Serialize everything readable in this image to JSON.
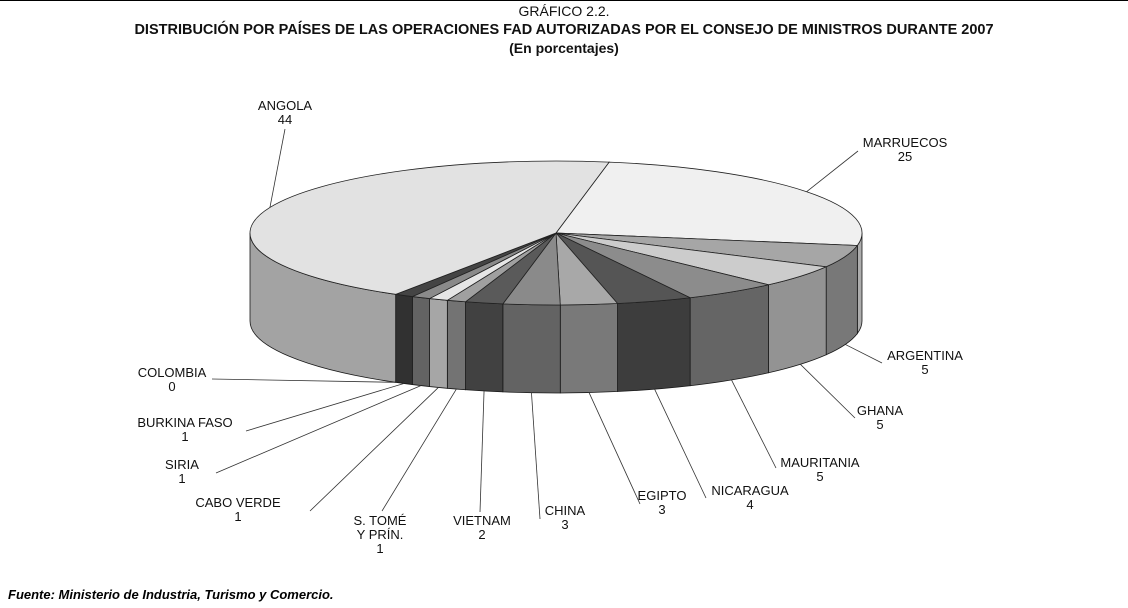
{
  "chart_data": {
    "type": "pie3d",
    "figure_label": "GRÁFICO 2.2.",
    "title": "DISTRIBUCIÓN POR PAÍSES DE LAS OPERACIONES FAD AUTORIZADAS POR EL CONSEJO DE MINISTROS DURANTE 2007",
    "subtitle": "(En porcentajes)",
    "source": "Fuente: Ministerio de Industria, Turismo y Comercio.",
    "categories": [
      "MARRUECOS",
      "ARGENTINA",
      "GHANA",
      "MAURITANIA",
      "NICARAGUA",
      "EGIPTO",
      "CHINA",
      "VIETNAM",
      "S. TOMÉ Y PRÍN.",
      "CABO VERDE",
      "SIRIA",
      "BURKINA FASO",
      "COLOMBIA",
      "ANGOLA"
    ],
    "values": [
      25,
      5,
      5,
      5,
      4,
      3,
      3,
      2,
      1,
      1,
      1,
      1,
      0,
      44
    ],
    "colors": [
      "#f0f0f0",
      "#a6a6a6",
      "#cccccc",
      "#8c8c8c",
      "#555555",
      "#a8a8a8",
      "#8a8a8a",
      "#5a5a5a",
      "#a0a0a0",
      "#e6e6e6",
      "#8a8a8a",
      "#444444",
      "#666666",
      "#e2e2e2"
    ]
  }
}
